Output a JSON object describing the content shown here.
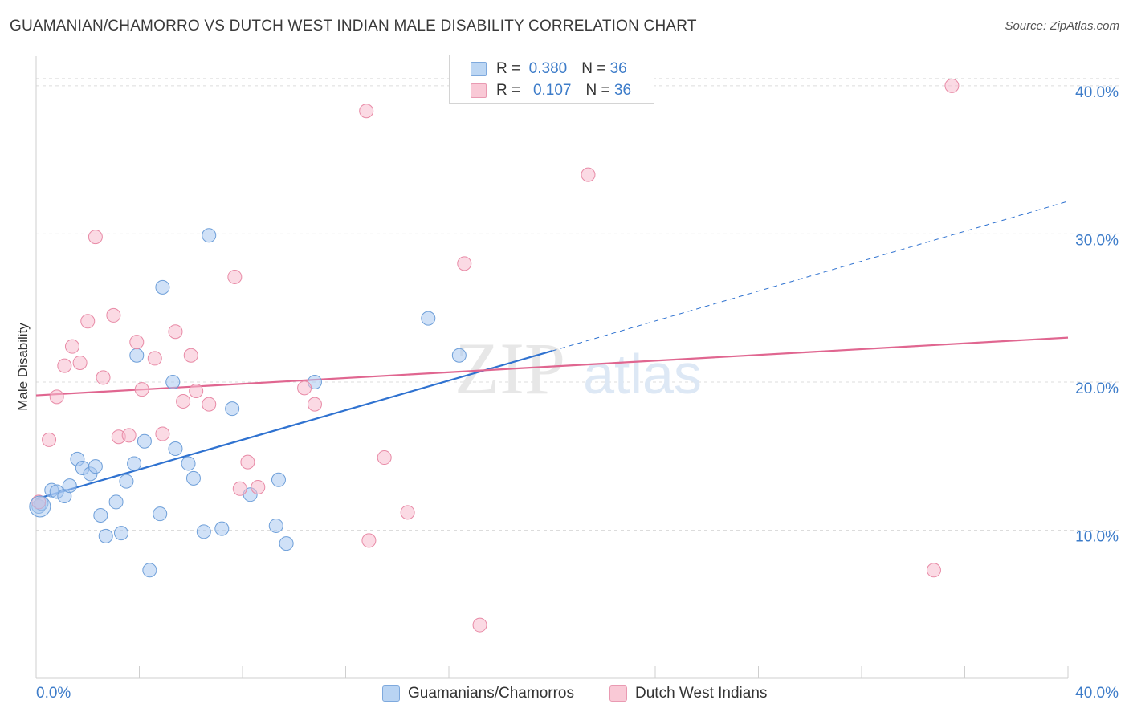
{
  "title": "GUAMANIAN/CHAMORRO VS DUTCH WEST INDIAN MALE DISABILITY CORRELATION CHART",
  "source": "Source: ZipAtlas.com",
  "watermark": {
    "zip": "ZIP",
    "atlas": "atlas"
  },
  "legend_stats": [
    {
      "r_label": "R =",
      "r_value": "0.380",
      "n_label": "N =",
      "n_value": "36",
      "color": "#a9c9f0",
      "border": "#6e9fd9"
    },
    {
      "r_label": "R =",
      "r_value": "0.107",
      "n_label": "N =",
      "n_value": "36",
      "color": "#f7bccd",
      "border": "#e88aa6"
    }
  ],
  "legend_bottom": [
    {
      "label": "Guamanians/Chamorros",
      "color": "#b9d4f3",
      "border": "#7ea9dd"
    },
    {
      "label": "Dutch West Indians",
      "color": "#f9c9d6",
      "border": "#e99ab2"
    }
  ],
  "chart_data": {
    "type": "scatter",
    "title": "GUAMANIAN/CHAMORRO VS DUTCH WEST INDIAN MALE DISABILITY CORRELATION CHART",
    "xlabel": "",
    "ylabel": "Male Disability",
    "xlim": [
      0,
      40
    ],
    "ylim": [
      0,
      42
    ],
    "x_tick_labels": [
      "0.0%",
      "40.0%"
    ],
    "y_ticks": [
      10,
      20,
      30,
      40
    ],
    "y_tick_labels": [
      "10.0%",
      "20.0%",
      "30.0%",
      "40.0%"
    ],
    "grid": true,
    "legend_position": "top-center",
    "series": [
      {
        "name": "Guamanians/Chamorros",
        "color": "#a9c9f0",
        "stroke": "#6e9fd9",
        "trend": {
          "x0": 0,
          "y0": 12.1,
          "x1": 20,
          "y1": 22.1,
          "dashed_to_x": 40,
          "dashed_to_y": 32.2,
          "color": "#2f72d0"
        },
        "points": [
          [
            0.1,
            11.6
          ],
          [
            0.2,
            11.8
          ],
          [
            0.6,
            12.7
          ],
          [
            0.8,
            12.6
          ],
          [
            1.1,
            12.3
          ],
          [
            1.3,
            13.0
          ],
          [
            1.6,
            14.8
          ],
          [
            1.8,
            14.2
          ],
          [
            2.1,
            13.8
          ],
          [
            2.3,
            14.3
          ],
          [
            2.5,
            11.0
          ],
          [
            2.7,
            9.6
          ],
          [
            3.1,
            11.9
          ],
          [
            3.3,
            9.8
          ],
          [
            3.5,
            13.3
          ],
          [
            3.8,
            14.5
          ],
          [
            3.9,
            21.8
          ],
          [
            4.2,
            16.0
          ],
          [
            4.4,
            7.3
          ],
          [
            4.8,
            11.1
          ],
          [
            4.9,
            26.4
          ],
          [
            5.3,
            20.0
          ],
          [
            5.4,
            15.5
          ],
          [
            5.9,
            14.5
          ],
          [
            6.1,
            13.5
          ],
          [
            6.5,
            9.9
          ],
          [
            6.7,
            29.9
          ],
          [
            7.2,
            10.1
          ],
          [
            7.6,
            18.2
          ],
          [
            8.3,
            12.4
          ],
          [
            9.3,
            10.3
          ],
          [
            9.4,
            13.4
          ],
          [
            9.7,
            9.1
          ],
          [
            10.8,
            20.0
          ],
          [
            15.2,
            24.3
          ],
          [
            16.4,
            21.8
          ]
        ]
      },
      {
        "name": "Dutch West Indians",
        "color": "#f7bccd",
        "stroke": "#e88aa6",
        "trend": {
          "x0": 0,
          "y0": 19.1,
          "x1": 40,
          "y1": 23.0,
          "color": "#e06690"
        },
        "points": [
          [
            0.1,
            11.9
          ],
          [
            0.5,
            16.1
          ],
          [
            0.8,
            19.0
          ],
          [
            1.1,
            21.1
          ],
          [
            1.4,
            22.4
          ],
          [
            1.7,
            21.3
          ],
          [
            2.0,
            24.1
          ],
          [
            2.3,
            29.8
          ],
          [
            2.6,
            20.3
          ],
          [
            3.0,
            24.5
          ],
          [
            3.2,
            16.3
          ],
          [
            3.6,
            16.4
          ],
          [
            3.9,
            22.7
          ],
          [
            4.1,
            19.5
          ],
          [
            4.6,
            21.6
          ],
          [
            4.9,
            16.5
          ],
          [
            5.4,
            23.4
          ],
          [
            5.7,
            18.7
          ],
          [
            6.0,
            21.8
          ],
          [
            6.2,
            19.4
          ],
          [
            6.7,
            18.5
          ],
          [
            7.7,
            27.1
          ],
          [
            7.9,
            12.8
          ],
          [
            8.2,
            14.6
          ],
          [
            8.6,
            12.9
          ],
          [
            10.4,
            19.6
          ],
          [
            10.8,
            18.5
          ],
          [
            12.8,
            38.3
          ],
          [
            12.9,
            9.3
          ],
          [
            13.5,
            14.9
          ],
          [
            14.4,
            11.2
          ],
          [
            16.6,
            28.0
          ],
          [
            17.2,
            3.6
          ],
          [
            21.4,
            34.0
          ],
          [
            34.8,
            7.3
          ],
          [
            35.5,
            40.0
          ]
        ]
      }
    ]
  }
}
